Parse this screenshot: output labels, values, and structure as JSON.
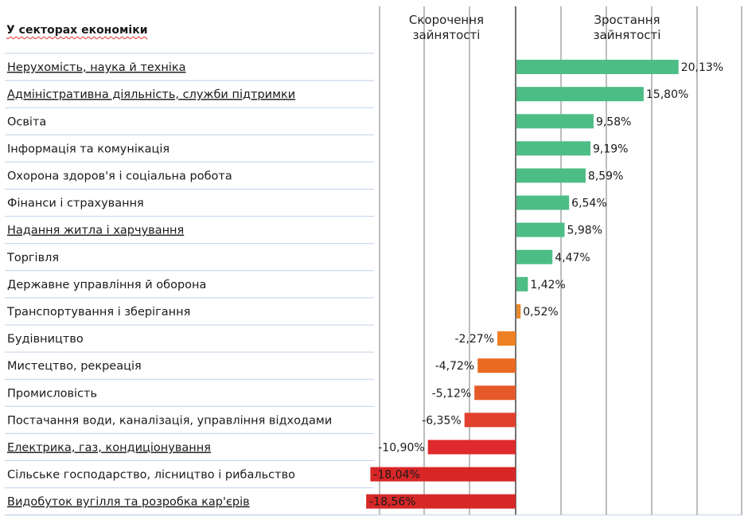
{
  "chart_data": {
    "type": "bar",
    "orientation": "horizontal",
    "title": "",
    "header_sectors": "У секторах економіки",
    "header_negative": "Скорочення зайнятості",
    "header_positive": "Зростання зайнятості",
    "categories": [
      "Нерухомість, наука й техніка",
      "Адміністративна діяльність, служби підтримки",
      "Освіта",
      "Інформація та комунікація",
      "Охорона здоров'я і соціальна робота",
      "Фінанси і страхування",
      "Надання житла і харчування",
      "Торгівля",
      "Державне управління й оборона",
      "Транспортування і зберігання",
      "Будівництво",
      "Мистецтво, рекреація",
      "Промисловість",
      "Постачання води, каналізація, управління відходами",
      "Електрика, газ, кондиціонування",
      "Сільське господарство, лісництво і рибальство",
      "Видобуток вугілля та розробка кар'єрів"
    ],
    "values": [
      20.13,
      15.8,
      9.58,
      9.19,
      8.59,
      6.54,
      5.98,
      4.47,
      1.42,
      0.52,
      -2.27,
      -4.72,
      -5.12,
      -6.35,
      -10.9,
      -18.04,
      -18.56
    ],
    "value_labels": [
      "20,13%",
      "15,80%",
      "9,58%",
      "9,19%",
      "8,59%",
      "6,54%",
      "5,98%",
      "4,47%",
      "1,42%",
      "0,52%",
      "-2,27%",
      "-4,72%",
      "-5,12%",
      "-6,35%",
      "-10,90%",
      "-18,04%",
      "-18,56%"
    ],
    "bar_colors": [
      "#4dbd86",
      "#4dbd86",
      "#4dbd86",
      "#4dbd86",
      "#4dbd86",
      "#4dbd86",
      "#4dbd86",
      "#4dbd86",
      "#4dbd86",
      "#e8892a",
      "#ee7f22",
      "#ea6a24",
      "#e55a28",
      "#e2402e",
      "#de2a2c",
      "#d82626",
      "#d62828"
    ],
    "xlim": [
      -19,
      21
    ],
    "grid": true,
    "legend": "none",
    "colors": {
      "positive": "#4dbd86",
      "negative_dark": "#d62828",
      "negative_light": "#ee7f22",
      "row_separator": "#bfd1e8",
      "grid": "#7a7a7a"
    }
  }
}
